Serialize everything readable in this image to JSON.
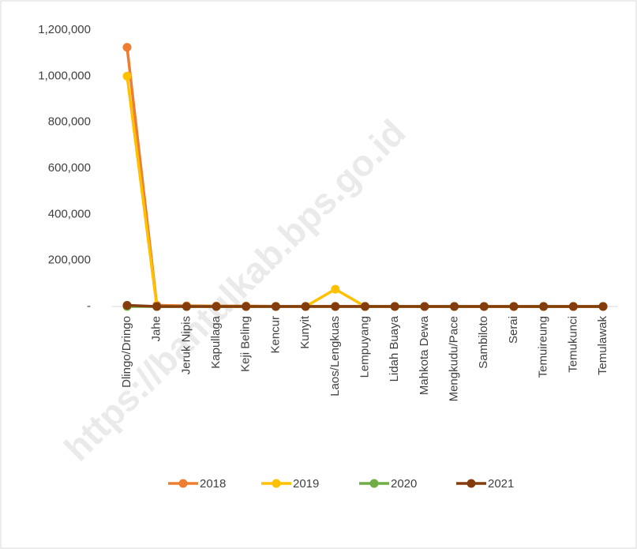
{
  "chart_data": {
    "type": "line",
    "watermark": "https://bantulkab.bps.go.id",
    "categories": [
      "Dlingo/Dringo",
      "Jahe",
      "Jeruk Nipis",
      "Kapullaga",
      "Keji Beling",
      "Kencur",
      "Kunyit",
      "Laos/Lengkuas",
      "Lempuyang",
      "Lidah Buaya",
      "Mahkota Dewa",
      "Mengkudu/Pace",
      "Sambiloto",
      "Serai",
      "Temuireung",
      "Temukunci",
      "Temulawak"
    ],
    "series": [
      {
        "name": "2018",
        "color": "#ed7d31",
        "values": [
          1125000,
          5000,
          3000,
          2000,
          2000,
          1000,
          1000,
          1000,
          1000,
          1000,
          500,
          500,
          500,
          500,
          500,
          500,
          500
        ]
      },
      {
        "name": "2019",
        "color": "#ffc000",
        "values": [
          1000000,
          0,
          0,
          0,
          0,
          0,
          0,
          75000,
          0,
          0,
          0,
          0,
          0,
          0,
          0,
          0,
          0
        ]
      },
      {
        "name": "2020",
        "color": "#70ad47",
        "values": [
          0,
          0,
          0,
          0,
          0,
          0,
          0,
          0,
          0,
          0,
          0,
          0,
          0,
          0,
          0,
          0,
          0
        ]
      },
      {
        "name": "2021",
        "color": "#843c0c",
        "values": [
          5000,
          0,
          0,
          0,
          0,
          0,
          0,
          0,
          0,
          0,
          0,
          0,
          0,
          0,
          0,
          0,
          0
        ]
      }
    ],
    "ylim": [
      0,
      1200000
    ],
    "yticks": [
      {
        "value": 0,
        "label": "-"
      },
      {
        "value": 200000,
        "label": "200,000"
      },
      {
        "value": 400000,
        "label": "400,000"
      },
      {
        "value": 600000,
        "label": "600,000"
      },
      {
        "value": 800000,
        "label": "800,000"
      },
      {
        "value": 1000000,
        "label": "1,000,000"
      },
      {
        "value": 1200000,
        "label": "1,200,000"
      }
    ],
    "legend": "bottom"
  }
}
